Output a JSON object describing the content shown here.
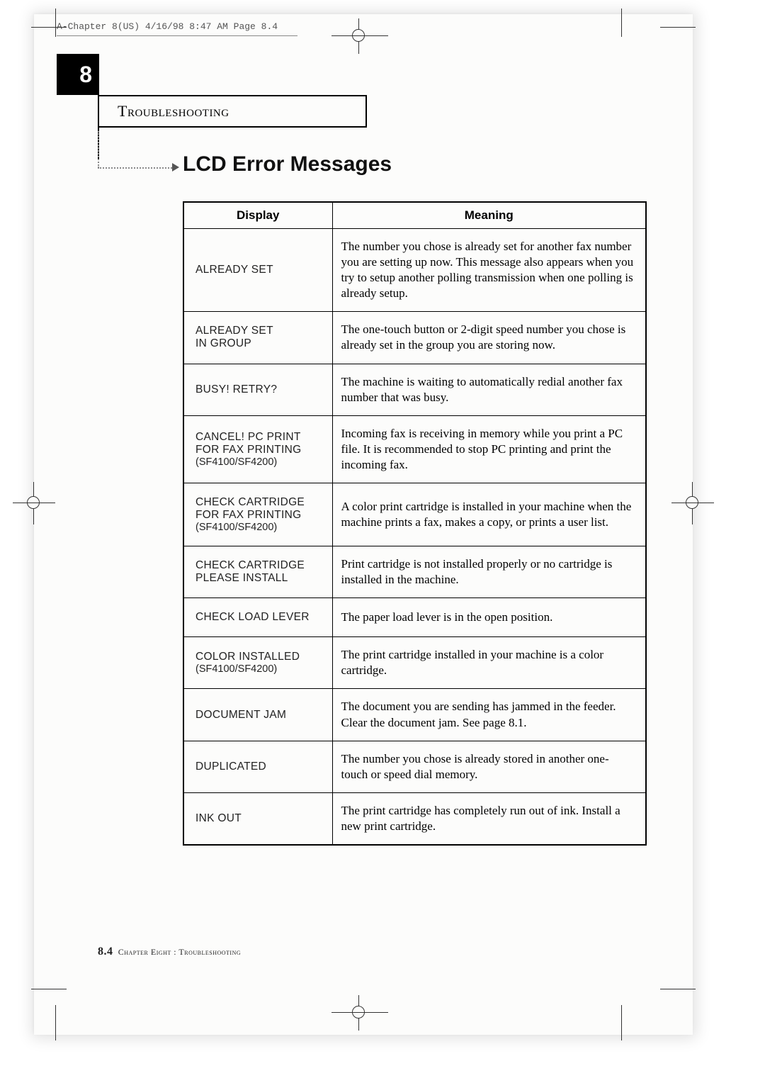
{
  "running_head": "A-Chapter 8(US)  4/16/98 8:47 AM  Page 8.4",
  "chapter_num": "8",
  "section_label": "Troubleshooting",
  "title": "LCD Error Messages",
  "columns": {
    "display": "Display",
    "meaning": "Meaning"
  },
  "rows": [
    {
      "display": "ALREADY SET",
      "sub": "",
      "meaning": "The number you chose is already set for another fax number you are setting up now. This message also appears when you try to setup another polling transmission when one polling is already setup."
    },
    {
      "display": "ALREADY SET\nIN GROUP",
      "sub": "",
      "meaning": "The one-touch button or 2-digit speed number you chose is already set in the group you are storing now."
    },
    {
      "display": "BUSY! RETRY?",
      "sub": "",
      "meaning": "The machine is waiting to automatically redial another fax number that was busy."
    },
    {
      "display": "CANCEL! PC PRINT\nFOR FAX PRINTING",
      "sub": "(SF4100/SF4200)",
      "meaning": "Incoming fax is receiving in memory while you print a PC file. It is recommended to stop PC printing and print the incoming fax."
    },
    {
      "display": "CHECK CARTRIDGE\nFOR FAX PRINTING",
      "sub": "(SF4100/SF4200)",
      "meaning": "A color print cartridge is installed in your machine when the machine prints a fax, makes a copy, or prints a user list."
    },
    {
      "display": "CHECK CARTRIDGE\nPLEASE INSTALL",
      "sub": "",
      "meaning": "Print cartridge is not installed properly or no cartridge is installed in the machine."
    },
    {
      "display": "CHECK LOAD LEVER",
      "sub": "",
      "meaning": "The paper load lever is in the open position."
    },
    {
      "display": "COLOR INSTALLED",
      "sub": "(SF4100/SF4200)",
      "meaning": "The print cartridge installed in your machine is a color cartridge."
    },
    {
      "display": "DOCUMENT JAM",
      "sub": "",
      "meaning": "The document you are sending has jammed in the feeder. Clear the document jam. See page 8.1."
    },
    {
      "display": "DUPLICATED",
      "sub": "",
      "meaning": "The number you chose is already stored in another one-touch or speed dial memory."
    },
    {
      "display": "INK OUT",
      "sub": "",
      "meaning": "The print cartridge has completely run out of ink. Install a new print cartridge."
    }
  ],
  "footer": {
    "page": "8.4",
    "chapter": "Chapter Eight :  Troubleshooting"
  }
}
